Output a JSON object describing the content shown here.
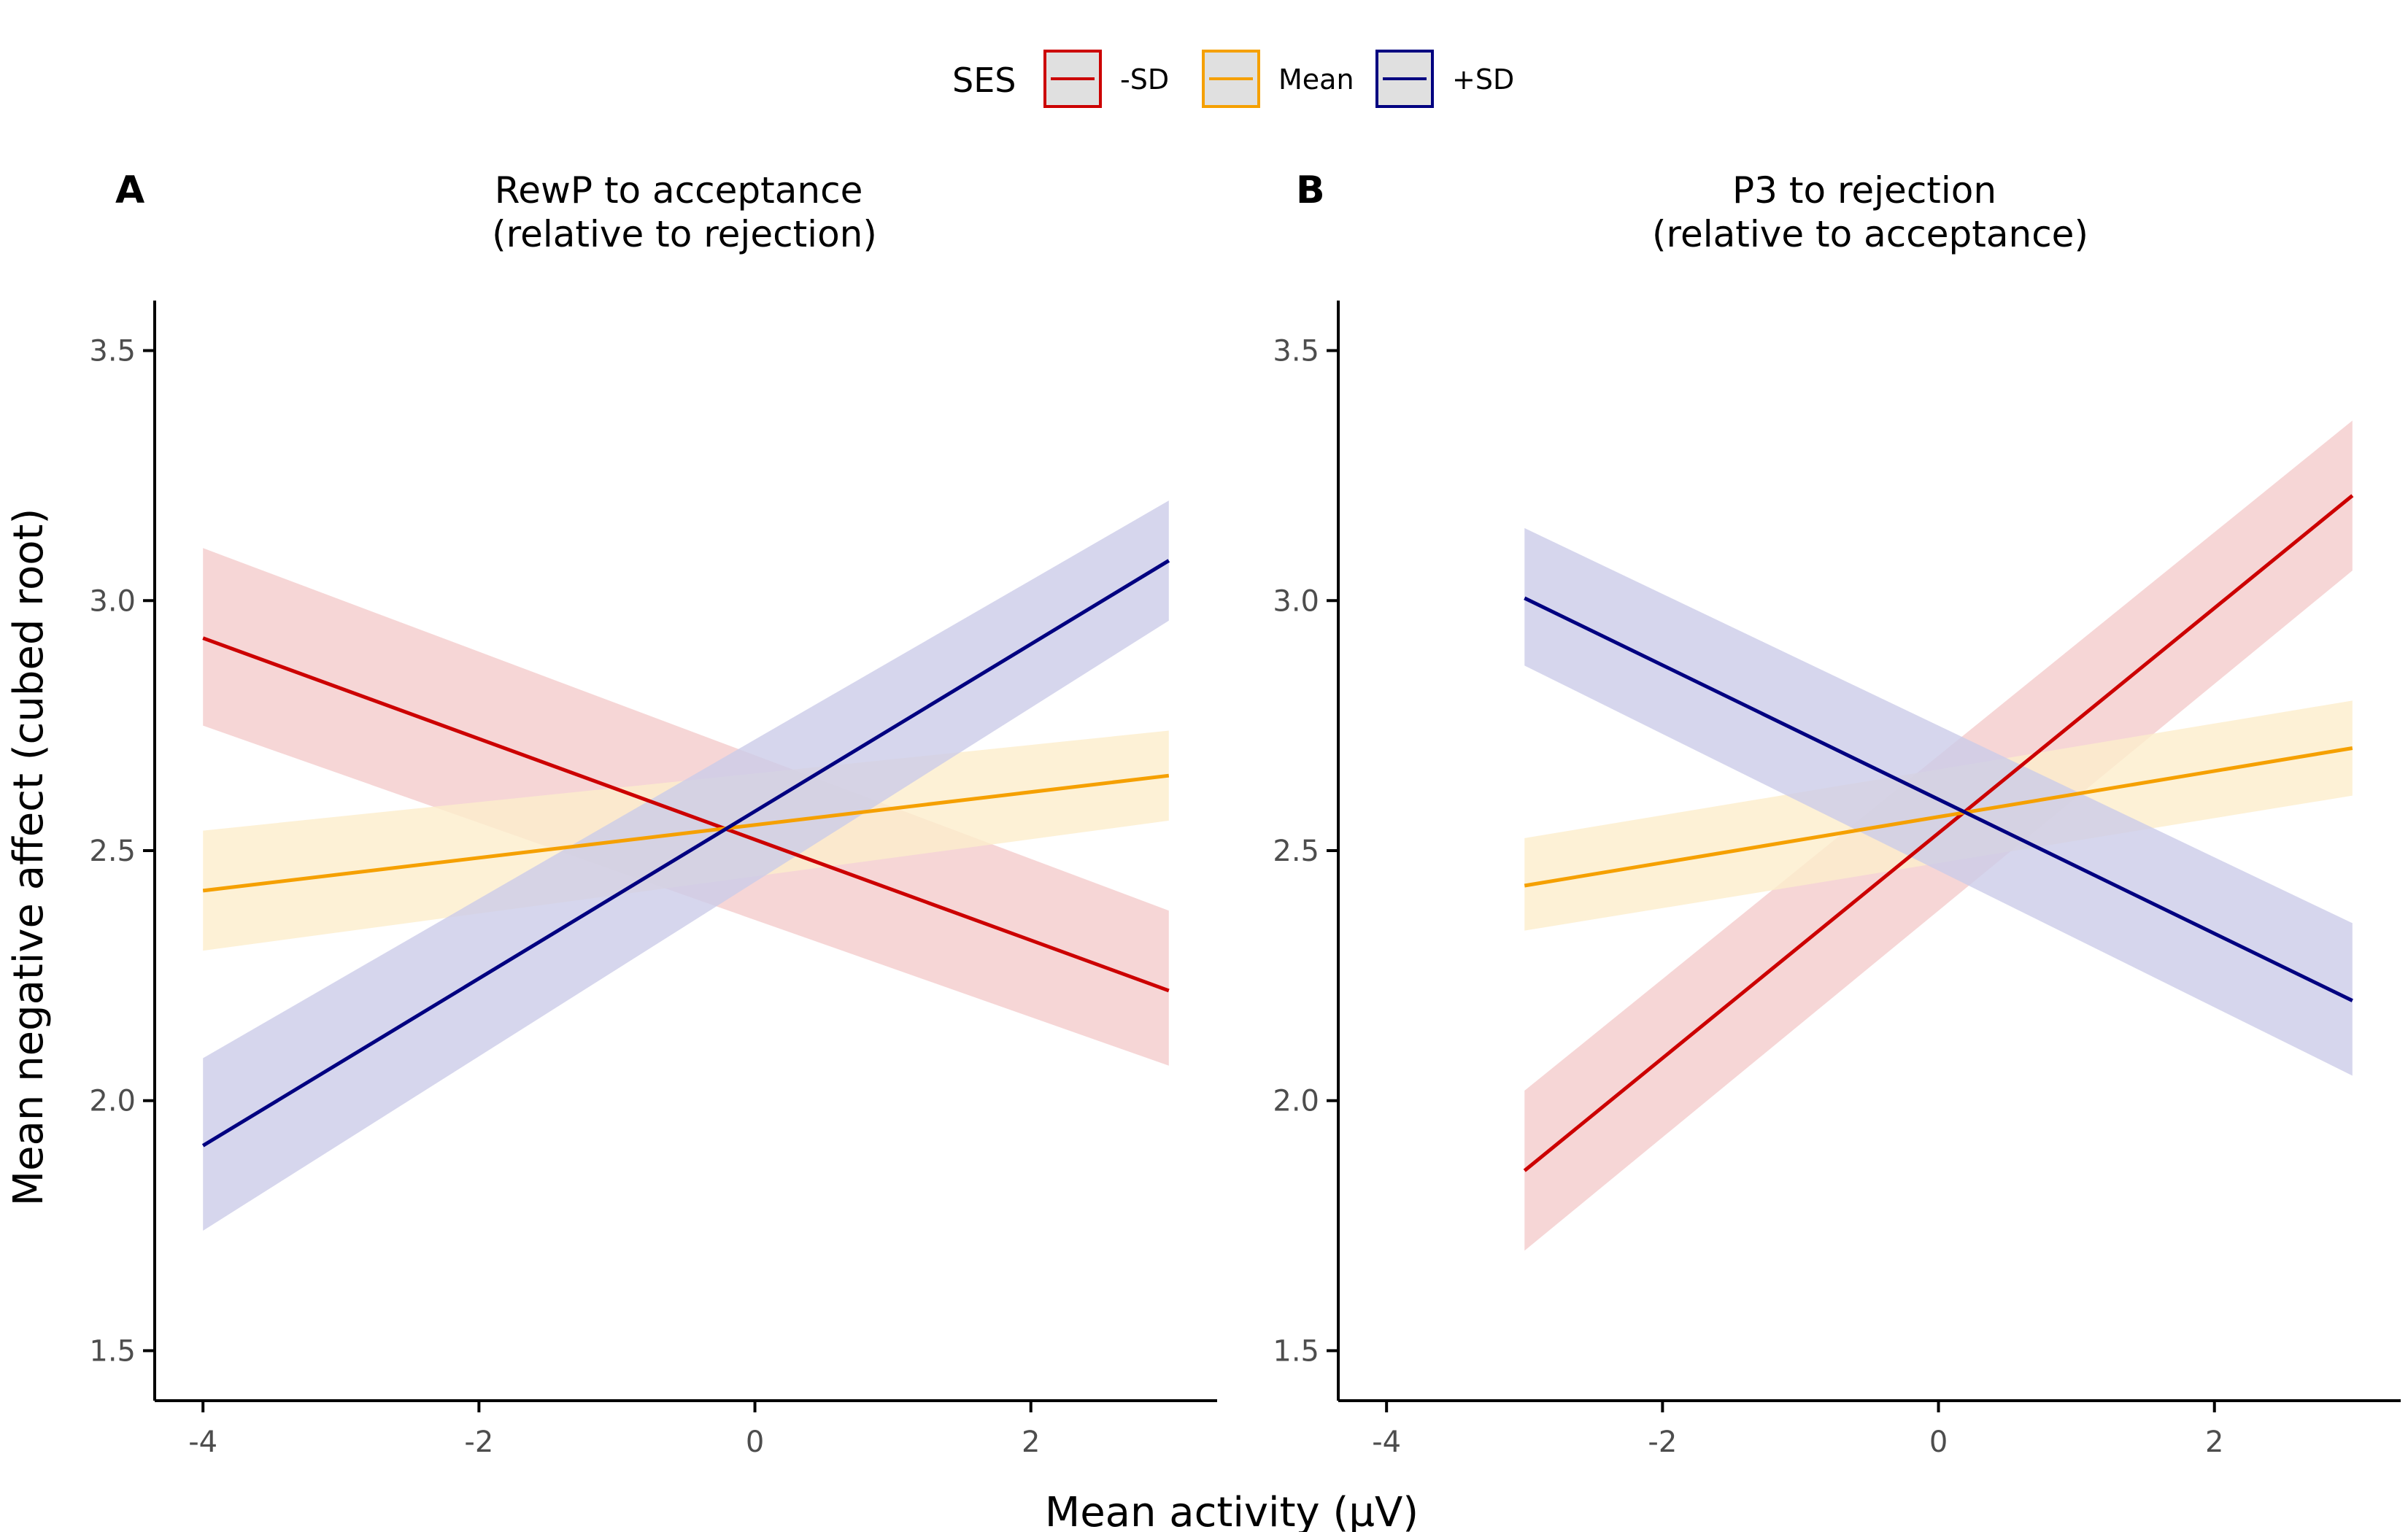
{
  "legend": {
    "title": "SES",
    "items": [
      {
        "label": "-SD",
        "color": "#CC0000",
        "band_color": "#F4CCCC"
      },
      {
        "label": "Mean",
        "color": "#F5A000",
        "band_color": "#FDEDCC"
      },
      {
        "label": "+SD",
        "color": "#000080",
        "band_color": "#CCCCE8"
      }
    ]
  },
  "colors": {
    "axis": "#000000",
    "tick_label": "#4d4d4d",
    "legend_key_background": "#E0E0E0"
  },
  "xlabel": "Mean activity (µV)",
  "ylabel": "Mean negative affect (cubed root)",
  "chart_data": [
    {
      "panel": "A",
      "type": "line",
      "title_lines": [
        "RewP to acceptance",
        "(relative to rejection)"
      ],
      "xlim": [
        -4.35,
        3.35
      ],
      "ylim": [
        1.4,
        3.6
      ],
      "x_ticks": [
        -4,
        -2,
        0,
        2
      ],
      "x_tick_labels": [
        "-4",
        "-2",
        "0",
        "2"
      ],
      "y_ticks": [
        1.5,
        2.0,
        2.5,
        3.0,
        3.5
      ],
      "y_tick_labels": [
        "1.5",
        "2.0",
        "2.5",
        "3.0",
        "3.5"
      ],
      "series": [
        {
          "name": "-SD",
          "x": [
            -4,
            3
          ],
          "y": [
            2.925,
            2.22
          ],
          "lower": [
            2.75,
            2.07
          ],
          "upper": [
            3.105,
            2.38
          ]
        },
        {
          "name": "Mean",
          "x": [
            -4,
            3
          ],
          "y": [
            2.42,
            2.65
          ],
          "lower": [
            2.3,
            2.56
          ],
          "upper": [
            2.54,
            2.74
          ]
        },
        {
          "name": "+SD",
          "x": [
            -4,
            3
          ],
          "y": [
            1.91,
            3.08
          ],
          "lower": [
            1.74,
            2.96
          ],
          "upper": [
            2.085,
            3.2
          ]
        }
      ]
    },
    {
      "panel": "B",
      "type": "line",
      "title_lines": [
        "P3 to rejection",
        "(relative to acceptance)"
      ],
      "xlim": [
        -4.35,
        3.35
      ],
      "ylim": [
        1.4,
        3.6
      ],
      "x_ticks": [
        -4,
        -2,
        0,
        2
      ],
      "x_tick_labels": [
        "-4",
        "-2",
        "0",
        "2"
      ],
      "y_ticks": [
        1.5,
        2.0,
        2.5,
        3.0,
        3.5
      ],
      "y_tick_labels": [
        "1.5",
        "2.0",
        "2.5",
        "3.0",
        "3.5"
      ],
      "series": [
        {
          "name": "-SD",
          "x": [
            -3,
            3
          ],
          "y": [
            1.86,
            3.21
          ],
          "lower": [
            1.7,
            3.06
          ],
          "upper": [
            2.02,
            3.36
          ]
        },
        {
          "name": "Mean",
          "x": [
            -3,
            3
          ],
          "y": [
            2.43,
            2.705
          ],
          "lower": [
            2.34,
            2.61
          ],
          "upper": [
            2.525,
            2.8
          ]
        },
        {
          "name": "+SD",
          "x": [
            -3,
            3
          ],
          "y": [
            3.005,
            2.2
          ],
          "lower": [
            2.87,
            2.05
          ],
          "upper": [
            3.145,
            2.355
          ]
        }
      ]
    }
  ]
}
